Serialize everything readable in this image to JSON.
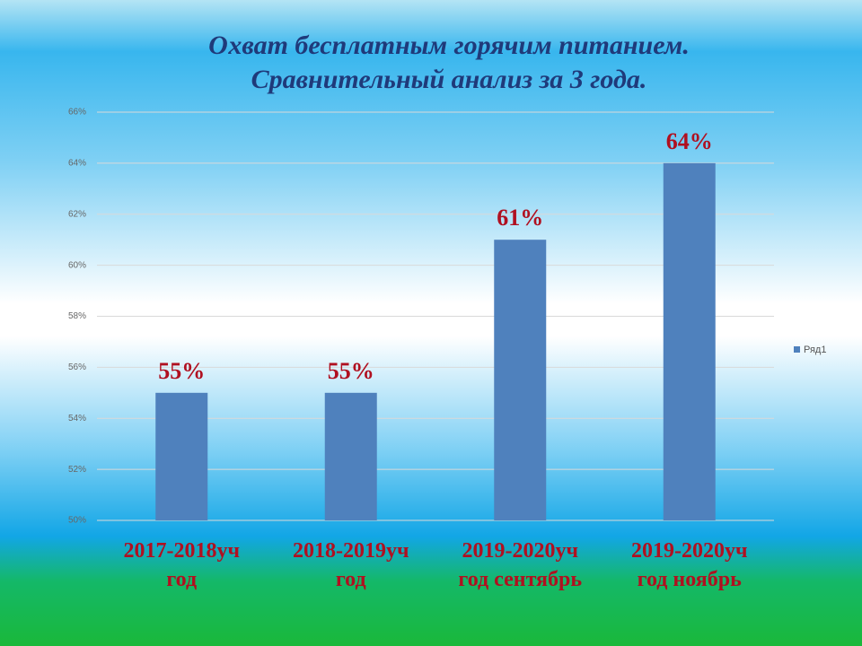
{
  "chart_data": {
    "type": "bar",
    "title": "Охват бесплатным горячим питанием.\nСравнительный анализ за 3 года.",
    "categories": [
      "2017-2018уч\nгод",
      "2018-2019уч\nгод",
      "2019-2020уч\nгод сентябрь",
      "2019-2020уч\nгод ноябрь"
    ],
    "series": [
      {
        "name": "Ряд1",
        "color": "#4f81bd",
        "values": [
          55,
          55,
          61,
          64
        ],
        "value_labels": [
          "55%",
          "55%",
          "61%",
          "64%"
        ]
      }
    ],
    "ylim": [
      50,
      66
    ],
    "yticks": [
      {
        "value": 50,
        "label": "50%"
      },
      {
        "value": 52,
        "label": "52%"
      },
      {
        "value": 54,
        "label": "54%"
      },
      {
        "value": 56,
        "label": "56%"
      },
      {
        "value": 58,
        "label": "58%"
      },
      {
        "value": 60,
        "label": "60%"
      },
      {
        "value": 62,
        "label": "62%"
      },
      {
        "value": 64,
        "label": "64%"
      },
      {
        "value": 66,
        "label": "66%"
      }
    ],
    "grid": true,
    "legend": "right"
  }
}
